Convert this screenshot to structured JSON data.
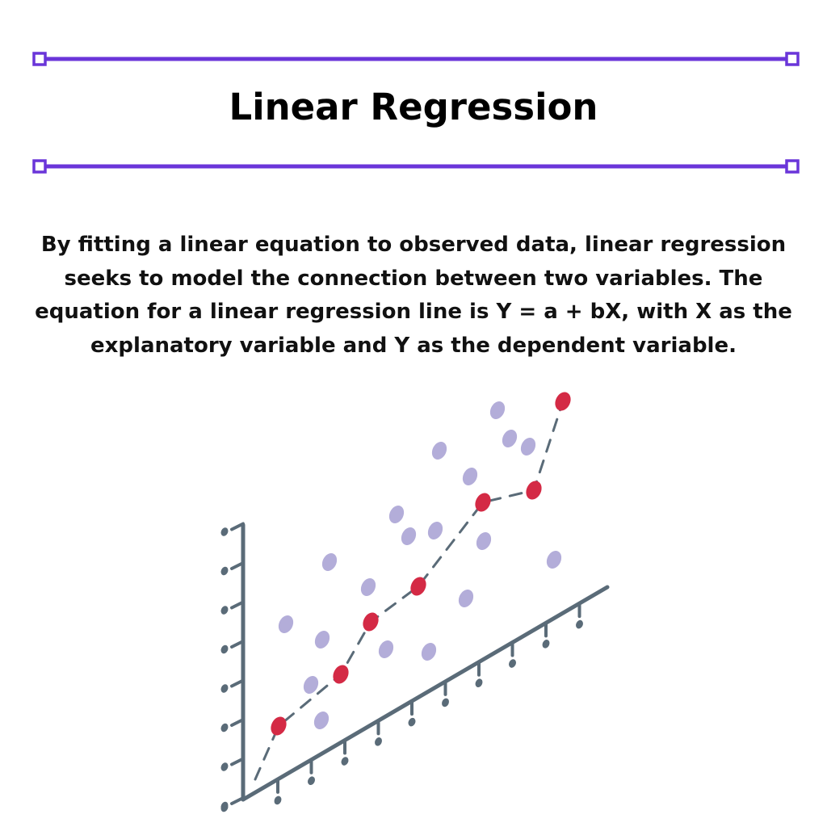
{
  "title": "Linear Regression",
  "description": "By fitting a linear equation to observed data, linear regression seeks to model the connection between two variables. The equation for a linear regression line is Y = a + bX, with X as the explanatory variable and Y as the dependent variable.",
  "colors": {
    "accent": "#6a35d9",
    "axis": "#5a6b78",
    "scatter_point": "#b3add9",
    "trend_point": "#d42a45",
    "trend_line": "#5a6b78"
  },
  "icons": {
    "rule_endpoint": "square-handle-icon",
    "trend_point": "red-dot-icon",
    "scatter_point": "lavender-dot-icon"
  }
}
